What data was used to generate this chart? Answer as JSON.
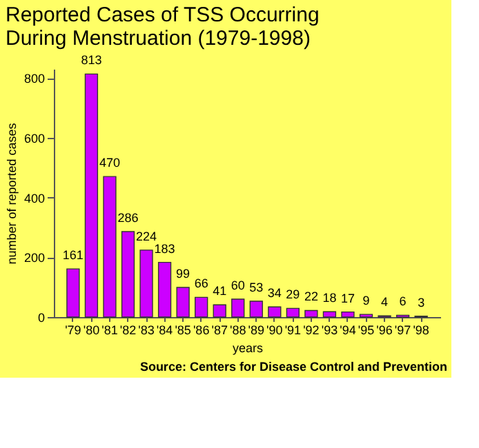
{
  "chart_data": {
    "type": "bar",
    "title": [
      "Reported Cases of TSS Occurring",
      "During Menstruation (1979-1998)"
    ],
    "categories": [
      "'79",
      "'80",
      "'81",
      "'82",
      "'83",
      "'84",
      "'85",
      "'86",
      "'87",
      "'88",
      "'89",
      "'90",
      "'91",
      "'92",
      "'93",
      "'94",
      "'95",
      "'96",
      "'97",
      "'98"
    ],
    "values": [
      161,
      813,
      470,
      286,
      224,
      183,
      99,
      66,
      41,
      60,
      53,
      34,
      29,
      22,
      18,
      17,
      9,
      4,
      6,
      3
    ],
    "color": "#cc00ff",
    "xlabel": "years",
    "ylabel": "number of reported cases",
    "ylim": [
      0,
      830
    ],
    "yticks": [
      0,
      200,
      400,
      600,
      800
    ],
    "grid": false,
    "data_labels": true,
    "annotations": [
      "Source:  Centers for Disease Control and Prevention"
    ]
  }
}
